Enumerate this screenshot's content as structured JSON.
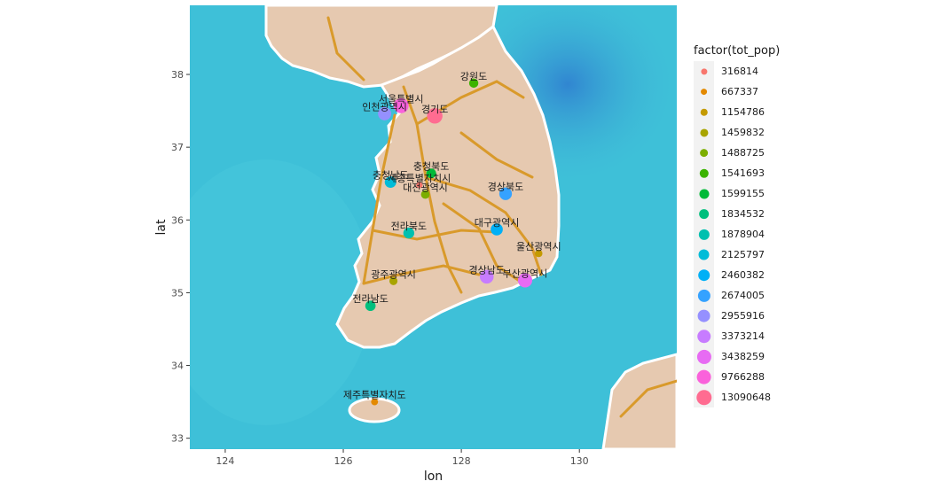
{
  "chart_data": {
    "type": "scatter",
    "title": "",
    "xlabel": "lon",
    "ylabel": "lat",
    "xlim": [
      123.4,
      131.65
    ],
    "ylim": [
      32.85,
      38.95
    ],
    "xticks": [
      124,
      126,
      128,
      130
    ],
    "yticks": [
      33,
      34,
      35,
      36,
      37,
      38
    ],
    "grid": false,
    "legend_position": "right",
    "legend_title": "factor(tot_pop)",
    "background": "map tiles (watercolor)",
    "levels": [
      {
        "label": "316814",
        "color": "#F8766D"
      },
      {
        "label": "667337",
        "color": "#E38900"
      },
      {
        "label": "1154786",
        "color": "#C49A00"
      },
      {
        "label": "1459832",
        "color": "#A8A400"
      },
      {
        "label": "1488725",
        "color": "#7CAE00"
      },
      {
        "label": "1541693",
        "color": "#3BB300"
      },
      {
        "label": "1599155",
        "color": "#00BA38"
      },
      {
        "label": "1834532",
        "color": "#00BF7D"
      },
      {
        "label": "1878904",
        "color": "#00C0AF"
      },
      {
        "label": "2125797",
        "color": "#00BCD8"
      },
      {
        "label": "2460382",
        "color": "#00B0F6"
      },
      {
        "label": "2674005",
        "color": "#35A2FF"
      },
      {
        "label": "2955916",
        "color": "#9590FF"
      },
      {
        "label": "3373214",
        "color": "#C77CFF"
      },
      {
        "label": "3438259",
        "color": "#E76BF3"
      },
      {
        "label": "9766288",
        "color": "#FA62DB"
      },
      {
        "label": "13090648",
        "color": "#FF6C91"
      }
    ],
    "points": [
      {
        "name": "세종특별자치시",
        "lon": 127.29,
        "lat": 36.48,
        "pop": "316814"
      },
      {
        "name": "제주특별자치도",
        "lon": 126.53,
        "lat": 33.5,
        "pop": "667337"
      },
      {
        "name": "울산광역시",
        "lon": 129.31,
        "lat": 35.54,
        "pop": "1154786"
      },
      {
        "name": "광주광역시",
        "lon": 126.85,
        "lat": 35.16,
        "pop": "1459832"
      },
      {
        "name": "대전광역시",
        "lon": 127.39,
        "lat": 36.35,
        "pop": "1488725"
      },
      {
        "name": "강원도",
        "lon": 128.21,
        "lat": 37.88,
        "pop": "1541693"
      },
      {
        "name": "충청북도",
        "lon": 127.49,
        "lat": 36.64,
        "pop": "1599155"
      },
      {
        "name": "전라남도",
        "lon": 126.46,
        "lat": 34.82,
        "pop": "1834532"
      },
      {
        "name": "전라북도",
        "lon": 127.11,
        "lat": 35.82,
        "pop": "1878904"
      },
      {
        "name": "충청남도",
        "lon": 126.8,
        "lat": 36.52,
        "pop": "2125797"
      },
      {
        "name": "대구광역시",
        "lon": 128.6,
        "lat": 35.87,
        "pop": "2460382"
      },
      {
        "name": "경상북도",
        "lon": 128.75,
        "lat": 36.36,
        "pop": "2674005"
      },
      {
        "name": "인천광역시",
        "lon": 126.7,
        "lat": 37.46,
        "pop": "2955916"
      },
      {
        "name": "경상남도",
        "lon": 128.43,
        "lat": 35.22,
        "pop": "3373214"
      },
      {
        "name": "부산광역시",
        "lon": 129.08,
        "lat": 35.17,
        "pop": "3438259"
      },
      {
        "name": "서울특별시",
        "lon": 126.98,
        "lat": 37.57,
        "pop": "9766288"
      },
      {
        "name": "경기도",
        "lon": 127.55,
        "lat": 37.43,
        "pop": "13090648"
      }
    ]
  }
}
